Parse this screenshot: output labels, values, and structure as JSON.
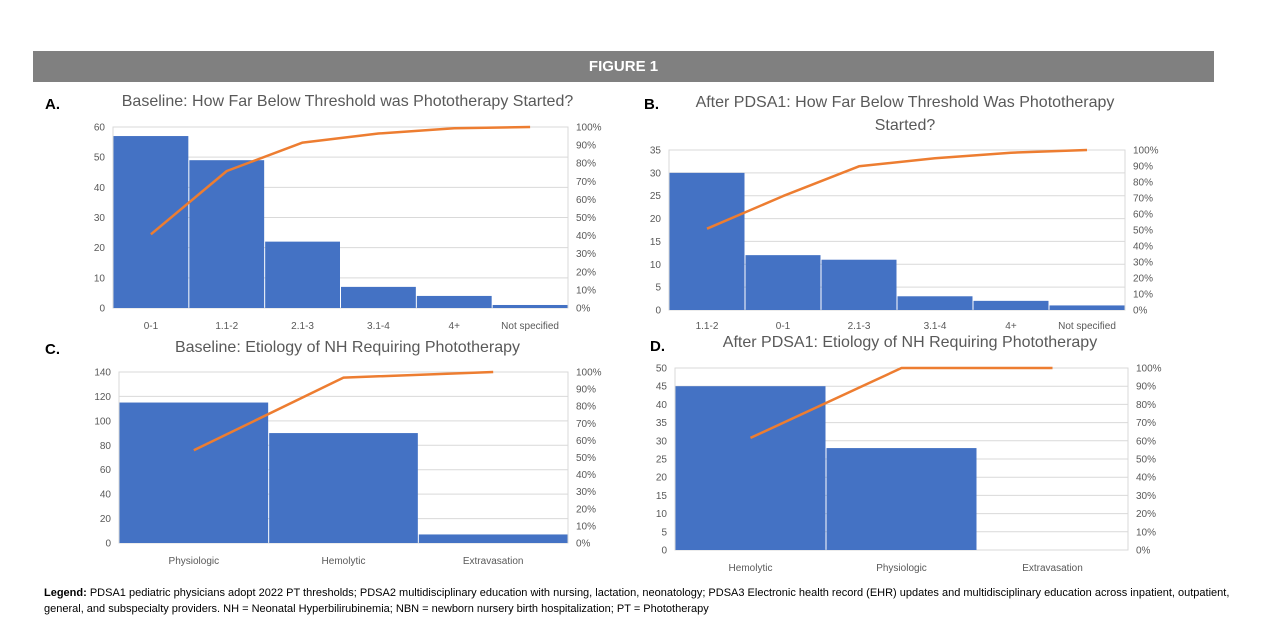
{
  "banner": "FIGURE 1",
  "legend": {
    "lead": "Legend:",
    "text": " PDSA1 pediatric physicians adopt 2022 PT thresholds; PDSA2 multidisciplinary education with nursing, lactation, neonatology; PDSA3 Electronic health record (EHR) updates and multidisciplinary education across inpatient, outpatient, general, and subspecialty providers. NH = Neonatal Hyperbilirubinemia; NBN = newborn nursery birth hospitalization; PT = Phototherapy"
  },
  "colors": {
    "bar": "#4472c4",
    "line": "#ed7d31",
    "grid": "#d9d9d9",
    "text": "#595959"
  },
  "chart_data": [
    {
      "panel": "A.",
      "type": "bar",
      "title": "Baseline: How Far Below Threshold was Phototherapy Started?",
      "categories": [
        "0-1",
        "1.1-2",
        "2.1-3",
        "3.1-4",
        "4+",
        "Not specified"
      ],
      "values": [
        57,
        49,
        22,
        7,
        4,
        1
      ],
      "cumulative_percent": [
        40.7,
        75.7,
        91.4,
        96.4,
        99.3,
        100
      ],
      "ylim": [
        0,
        60
      ],
      "yticks": [
        0,
        10,
        20,
        30,
        40,
        50,
        60
      ],
      "y2ticks": [
        "0%",
        "10%",
        "20%",
        "30%",
        "40%",
        "50%",
        "60%",
        "70%",
        "80%",
        "90%",
        "100%"
      ],
      "grid": true
    },
    {
      "panel": "B.",
      "type": "bar",
      "title": "After PDSA1: How Far Below Threshold Was Phototherapy Started?",
      "categories": [
        "1.1-2",
        "0-1",
        "2.1-3",
        "3.1-4",
        "4+",
        "Not specified"
      ],
      "values": [
        30,
        12,
        11,
        3,
        2,
        1
      ],
      "cumulative_percent": [
        50.8,
        71.2,
        89.8,
        94.9,
        98.3,
        100
      ],
      "ylim": [
        0,
        35
      ],
      "yticks": [
        0,
        5,
        10,
        15,
        20,
        25,
        30,
        35
      ],
      "y2ticks": [
        "0%",
        "10%",
        "20%",
        "30%",
        "40%",
        "50%",
        "60%",
        "70%",
        "80%",
        "90%",
        "100%"
      ],
      "grid": true
    },
    {
      "panel": "C.",
      "type": "bar",
      "title": "Baseline: Etiology of NH Requiring Phototherapy",
      "categories": [
        "Physiologic",
        "Hemolytic",
        "Extravasation"
      ],
      "values": [
        115,
        90,
        7
      ],
      "cumulative_percent": [
        54.2,
        96.7,
        100
      ],
      "ylim": [
        0,
        140
      ],
      "yticks": [
        0,
        20,
        40,
        60,
        80,
        100,
        120,
        140
      ],
      "y2ticks": [
        "0%",
        "10%",
        "20%",
        "30%",
        "40%",
        "50%",
        "60%",
        "70%",
        "80%",
        "90%",
        "100%"
      ],
      "grid": true
    },
    {
      "panel": "D.",
      "type": "bar",
      "title": "After PDSA1: Etiology of NH Requiring Phototherapy",
      "categories": [
        "Hemolytic",
        "Physiologic",
        "Extravasation"
      ],
      "values": [
        45,
        28,
        0
      ],
      "cumulative_percent": [
        61.6,
        100,
        100
      ],
      "ylim": [
        0,
        50
      ],
      "yticks": [
        0,
        5,
        10,
        15,
        20,
        25,
        30,
        35,
        40,
        45,
        50
      ],
      "y2ticks": [
        "0%",
        "10%",
        "20%",
        "30%",
        "40%",
        "50%",
        "60%",
        "70%",
        "80%",
        "90%",
        "100%"
      ],
      "grid": true
    }
  ]
}
